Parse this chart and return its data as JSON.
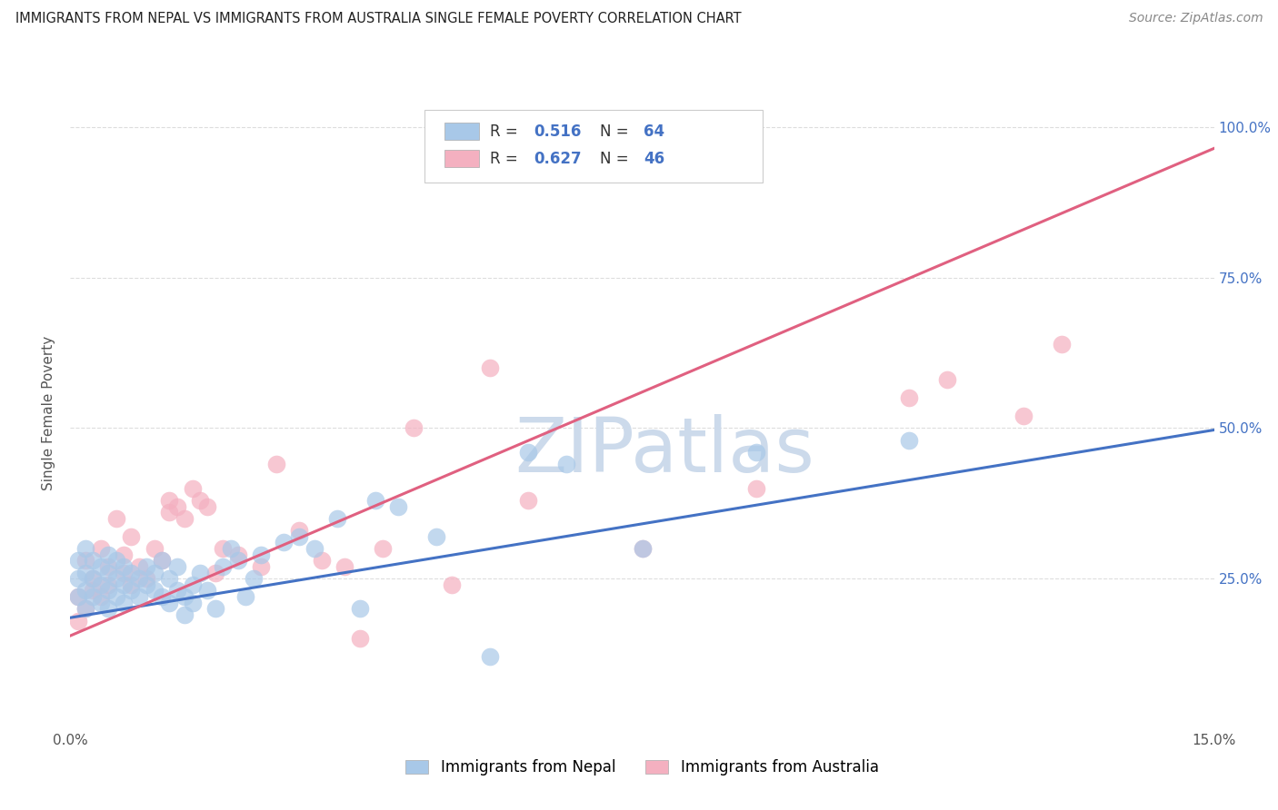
{
  "title": "IMMIGRANTS FROM NEPAL VS IMMIGRANTS FROM AUSTRALIA SINGLE FEMALE POVERTY CORRELATION CHART",
  "source": "Source: ZipAtlas.com",
  "ylabel": "Single Female Poverty",
  "x_min": 0.0,
  "x_max": 0.15,
  "y_min": 0.0,
  "y_max": 1.05,
  "nepal_color": "#a8c8e8",
  "nepal_line_color": "#4472c4",
  "australia_color": "#f4b0c0",
  "australia_line_color": "#e06080",
  "nepal_R": "0.516",
  "nepal_N": "64",
  "australia_R": "0.627",
  "australia_N": "46",
  "nepal_scatter_x": [
    0.001,
    0.001,
    0.001,
    0.002,
    0.002,
    0.002,
    0.002,
    0.003,
    0.003,
    0.003,
    0.004,
    0.004,
    0.004,
    0.005,
    0.005,
    0.005,
    0.005,
    0.006,
    0.006,
    0.006,
    0.007,
    0.007,
    0.007,
    0.008,
    0.008,
    0.009,
    0.009,
    0.01,
    0.01,
    0.011,
    0.011,
    0.012,
    0.012,
    0.013,
    0.013,
    0.014,
    0.014,
    0.015,
    0.015,
    0.016,
    0.016,
    0.017,
    0.018,
    0.019,
    0.02,
    0.021,
    0.022,
    0.023,
    0.024,
    0.025,
    0.028,
    0.03,
    0.032,
    0.035,
    0.038,
    0.04,
    0.043,
    0.048,
    0.055,
    0.06,
    0.065,
    0.075,
    0.09,
    0.11
  ],
  "nepal_scatter_y": [
    0.22,
    0.25,
    0.28,
    0.2,
    0.23,
    0.26,
    0.3,
    0.22,
    0.25,
    0.28,
    0.21,
    0.24,
    0.27,
    0.2,
    0.23,
    0.26,
    0.29,
    0.22,
    0.25,
    0.28,
    0.21,
    0.24,
    0.27,
    0.23,
    0.26,
    0.22,
    0.25,
    0.24,
    0.27,
    0.23,
    0.26,
    0.22,
    0.28,
    0.21,
    0.25,
    0.23,
    0.27,
    0.22,
    0.19,
    0.24,
    0.21,
    0.26,
    0.23,
    0.2,
    0.27,
    0.3,
    0.28,
    0.22,
    0.25,
    0.29,
    0.31,
    0.32,
    0.3,
    0.35,
    0.2,
    0.38,
    0.37,
    0.32,
    0.12,
    0.46,
    0.44,
    0.3,
    0.46,
    0.48
  ],
  "australia_scatter_x": [
    0.001,
    0.001,
    0.002,
    0.002,
    0.003,
    0.003,
    0.004,
    0.004,
    0.005,
    0.005,
    0.006,
    0.007,
    0.007,
    0.008,
    0.008,
    0.009,
    0.01,
    0.011,
    0.012,
    0.013,
    0.013,
    0.014,
    0.015,
    0.016,
    0.017,
    0.018,
    0.019,
    0.02,
    0.022,
    0.025,
    0.027,
    0.03,
    0.033,
    0.036,
    0.038,
    0.041,
    0.045,
    0.05,
    0.055,
    0.06,
    0.075,
    0.09,
    0.11,
    0.115,
    0.125,
    0.13
  ],
  "australia_scatter_y": [
    0.18,
    0.22,
    0.2,
    0.28,
    0.23,
    0.25,
    0.22,
    0.3,
    0.24,
    0.27,
    0.35,
    0.26,
    0.29,
    0.24,
    0.32,
    0.27,
    0.25,
    0.3,
    0.28,
    0.36,
    0.38,
    0.37,
    0.35,
    0.4,
    0.38,
    0.37,
    0.26,
    0.3,
    0.29,
    0.27,
    0.44,
    0.33,
    0.28,
    0.27,
    0.15,
    0.3,
    0.5,
    0.24,
    0.6,
    0.38,
    0.3,
    0.4,
    0.55,
    0.58,
    0.52,
    0.64
  ],
  "nepal_trend": [
    0.185,
    0.497
  ],
  "australia_trend": [
    0.155,
    0.965
  ],
  "legend_nepal_label": "Immigrants from Nepal",
  "legend_australia_label": "Immigrants from Australia",
  "watermark_text": "ZIPatlas",
  "watermark_color": "#ccdaeb",
  "background_color": "#ffffff",
  "grid_color": "#dddddd",
  "right_tick_color": "#4472c4"
}
